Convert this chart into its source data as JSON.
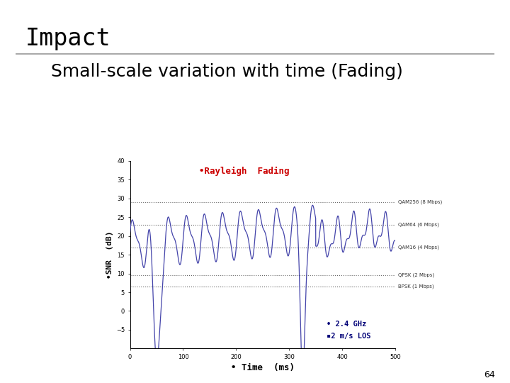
{
  "title": "Impact",
  "subtitle": "Small-scale variation with time (Fading)",
  "rayleigh_label": "•Rayleigh  Fading",
  "ylabel": "•SNR  (dB)",
  "xlabel": "• Time  (ms)",
  "hlines": [
    {
      "y": 29.0,
      "label": "QAM256 (8 Mbps)",
      "color": "#555555"
    },
    {
      "y": 23.0,
      "label": "QAM64 (6 Mbps)",
      "color": "#555555"
    },
    {
      "y": 17.0,
      "label": "QAM16 (4 Mbps)",
      "color": "#555555"
    },
    {
      "y": 9.5,
      "label": "QPSK (2 Mbps)",
      "color": "#555555"
    },
    {
      "y": 6.5,
      "label": "BPSK (1 Mbps)",
      "color": "#555555"
    }
  ],
  "line_color": "#4444aa",
  "bg_color": "#ffffff",
  "title_fontsize": 24,
  "subtitle_fontsize": 18,
  "page_number": "64",
  "xlim": [
    0,
    500
  ],
  "ylim": [
    -10,
    40
  ],
  "ann_ghz": "• 2.4 GHz",
  "ann_los": "▪2 m/s LOS"
}
